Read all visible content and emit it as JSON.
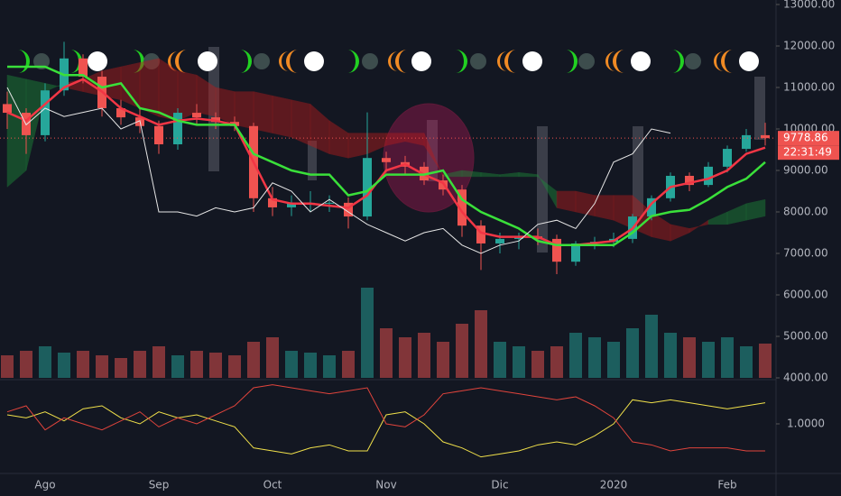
{
  "chart_data": [
    {
      "type": "candlestick",
      "categories": [
        null,
        null,
        "Ago",
        null,
        null,
        null,
        null,
        null,
        "Sep",
        null,
        null,
        null,
        null,
        null,
        "Oct",
        null,
        null,
        null,
        null,
        null,
        "Nov",
        null,
        null,
        null,
        null,
        null,
        "Dic",
        null,
        null,
        null,
        null,
        null,
        "2020",
        null,
        null,
        null,
        null,
        null,
        "Feb",
        null,
        null
      ],
      "open": [
        10600,
        10390,
        9850,
        10930,
        11700,
        11260,
        10500,
        10280,
        10070,
        9630,
        10390,
        10280,
        10170,
        10070,
        8330,
        8110,
        8220,
        8220,
        8220,
        7890,
        9300,
        9200,
        9090,
        8760,
        8540,
        7670,
        7240,
        7350,
        7410,
        7350,
        6800,
        7240,
        7280,
        7350,
        7890,
        8330,
        8870,
        8650,
        9090,
        9520,
        9850
      ],
      "high": [
        10900,
        10500,
        11100,
        12100,
        11800,
        11400,
        10700,
        10500,
        10200,
        10500,
        10600,
        10400,
        10300,
        10150,
        8600,
        8400,
        8500,
        8400,
        8350,
        10400,
        9450,
        9350,
        9200,
        8900,
        8650,
        7800,
        7500,
        7500,
        7600,
        7450,
        7300,
        7400,
        7500,
        7950,
        8400,
        8950,
        8950,
        9200,
        9600,
        10000,
        10150
      ],
      "low": [
        10000,
        9400,
        9700,
        10800,
        11100,
        10300,
        10100,
        9900,
        9400,
        9500,
        10100,
        10000,
        9950,
        8000,
        7900,
        7900,
        8000,
        8000,
        7600,
        7800,
        8950,
        8900,
        8650,
        8400,
        7400,
        6600,
        7000,
        7100,
        7200,
        6500,
        6700,
        7100,
        7150,
        7250,
        7800,
        8250,
        8500,
        8600,
        8950,
        9450,
        9600
      ],
      "close": [
        10390,
        9850,
        10930,
        11700,
        11260,
        10500,
        10280,
        10070,
        9630,
        10390,
        10280,
        10170,
        10070,
        8330,
        8110,
        8220,
        8220,
        8220,
        7890,
        9300,
        9200,
        9090,
        8760,
        8540,
        7670,
        7240,
        7350,
        7410,
        7350,
        6800,
        7240,
        7280,
        7350,
        7890,
        8330,
        8870,
        8650,
        9090,
        9520,
        9850,
        9778.86
      ],
      "volume": [
        25,
        30,
        35,
        28,
        30,
        25,
        22,
        30,
        35,
        25,
        30,
        28,
        25,
        40,
        45,
        30,
        28,
        25,
        30,
        100,
        55,
        45,
        50,
        40,
        60,
        75,
        40,
        35,
        30,
        35,
        50,
        45,
        40,
        55,
        70,
        50,
        45,
        40,
        45,
        35,
        38
      ],
      "up_color": "#26a69a",
      "down_color": "#ef5350",
      "cloud": {
        "span_a": [
          11300,
          11200,
          11100,
          11000,
          10900,
          10800,
          10700,
          10500,
          10300,
          10200,
          10400,
          10300,
          10100,
          10000,
          9900,
          9800,
          9600,
          9400,
          9300,
          9400,
          9600,
          9700,
          9600,
          8900,
          9000,
          8950,
          8900,
          8950,
          8900,
          8100,
          8000,
          7900,
          7800,
          7600,
          7400,
          7300,
          7500,
          7800,
          8000,
          8200,
          8300
        ],
        "span_b": [
          8600,
          9000,
          10900,
          11100,
          11200,
          11400,
          11500,
          11600,
          11700,
          11400,
          11300,
          11000,
          10900,
          10900,
          10800,
          10700,
          10600,
          10200,
          9900,
          9900,
          9900,
          9900,
          9900,
          8850,
          8850,
          8850,
          8850,
          8850,
          8850,
          8500,
          8500,
          8400,
          8400,
          8400,
          8000,
          7700,
          7600,
          7700,
          7700,
          7800,
          7900
        ],
        "up_color": "#1e8a3a",
        "down_color": "#b71c1c"
      },
      "lines": [
        {
          "color": "#f23645",
          "values": [
            10400,
            10200,
            10600,
            11000,
            11200,
            10900,
            10500,
            10300,
            10100,
            10200,
            10250,
            10200,
            10100,
            9200,
            8300,
            8200,
            8200,
            8150,
            8100,
            8400,
            9000,
            9150,
            8900,
            8700,
            8000,
            7500,
            7400,
            7400,
            7400,
            7200,
            7200,
            7250,
            7300,
            7600,
            8200,
            8600,
            8700,
            8800,
            9000,
            9400,
            9550
          ]
        },
        {
          "color": "#3ae03a",
          "values": [
            11500,
            11500,
            11500,
            11300,
            11300,
            11000,
            11100,
            10500,
            10400,
            10200,
            10100,
            10100,
            10100,
            9400,
            9200,
            9000,
            8900,
            8900,
            8400,
            8500,
            8900,
            8900,
            8900,
            9000,
            8300,
            8000,
            7800,
            7600,
            7300,
            7200,
            7200,
            7200,
            7200,
            7500,
            7900,
            8000,
            8050,
            8300,
            8600,
            8800,
            9200
          ]
        },
        {
          "color": "#e6e6e6",
          "values": [
            11000,
            10100,
            10500,
            10300,
            10400,
            10500,
            10000,
            10200,
            8000,
            8000,
            7900,
            8100,
            8000,
            8100,
            8700,
            8500,
            8000,
            8300,
            8000,
            7700,
            7500,
            7300,
            7500,
            7600,
            7200,
            7000,
            7200,
            7300,
            7700,
            7800,
            7600,
            8200,
            9200,
            9400,
            10000,
            9900,
            null,
            null,
            null,
            null,
            null
          ]
        }
      ],
      "ylim": [
        4000,
        13000
      ],
      "yticks": [
        {
          "value": 13000,
          "label": "13000.00"
        },
        {
          "value": 12000,
          "label": "12000.00"
        },
        {
          "value": 11000,
          "label": "11000.00"
        },
        {
          "value": 10000,
          "label": "10000.00"
        },
        {
          "value": 9000,
          "label": "9000.00"
        },
        {
          "value": 8000,
          "label": "8000.00"
        },
        {
          "value": 7000,
          "label": "7000.00"
        },
        {
          "value": 6000,
          "label": "6000.00"
        },
        {
          "value": 5000,
          "label": "5000.00"
        },
        {
          "value": 4000,
          "label": "4000.00"
        }
      ],
      "last_price": 9778.86,
      "last_price_color": "#ef5350",
      "countdown": "22:31:49"
    },
    {
      "type": "line",
      "series": [
        {
          "color": "#f0e04a",
          "values": [
            1.15,
            1.1,
            1.2,
            1.05,
            1.25,
            1.3,
            1.1,
            1.0,
            1.2,
            1.1,
            1.15,
            1.05,
            0.95,
            0.6,
            0.55,
            0.5,
            0.6,
            0.65,
            0.55,
            0.55,
            1.15,
            1.2,
            1.0,
            0.7,
            0.6,
            0.45,
            0.5,
            0.55,
            0.65,
            0.7,
            0.65,
            0.8,
            1.0,
            1.4,
            1.35,
            1.4,
            1.35,
            1.3,
            1.25,
            1.3,
            1.35
          ]
        },
        {
          "color": "#e0443c",
          "values": [
            1.2,
            1.3,
            0.9,
            1.1,
            1.0,
            0.9,
            1.05,
            1.2,
            0.95,
            1.1,
            1.0,
            1.15,
            1.3,
            1.6,
            1.65,
            1.6,
            1.55,
            1.5,
            1.55,
            1.6,
            1.0,
            0.95,
            1.15,
            1.5,
            1.55,
            1.6,
            1.55,
            1.5,
            1.45,
            1.4,
            1.45,
            1.3,
            1.1,
            0.7,
            0.65,
            0.55,
            0.6,
            0.6,
            0.6,
            0.55,
            0.55
          ]
        }
      ],
      "ylim": [
        0.25,
        1.75
      ],
      "yticks": [
        {
          "value": 1,
          "label": "1.0000"
        }
      ]
    }
  ]
}
